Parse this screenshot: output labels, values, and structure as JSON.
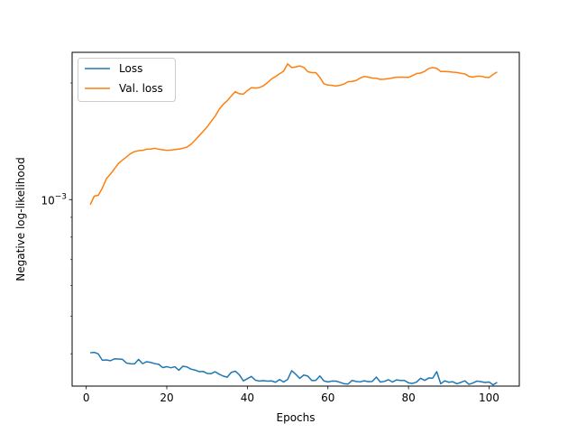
{
  "chart_data": {
    "type": "line",
    "xlabel": "Epochs",
    "ylabel": "Negative log-likelihood",
    "xlim": [
      -3.5,
      107.5
    ],
    "xticks": [
      0,
      20,
      40,
      60,
      80,
      100
    ],
    "xtick_labels": [
      "0",
      "20",
      "40",
      "60",
      "80",
      "100"
    ],
    "yscale": "log",
    "ylim": [
      0.00033,
      0.0024
    ],
    "ytick_label_base": "10",
    "ytick_label_exp": "−3",
    "legend_location": "upper left",
    "grid": false,
    "x": [
      1,
      2,
      3,
      4,
      5,
      6,
      7,
      8,
      9,
      10,
      11,
      12,
      13,
      14,
      15,
      16,
      17,
      18,
      19,
      20,
      21,
      22,
      23,
      24,
      25,
      26,
      27,
      28,
      29,
      30,
      31,
      32,
      33,
      34,
      35,
      36,
      37,
      38,
      39,
      40,
      41,
      42,
      43,
      44,
      45,
      46,
      47,
      48,
      49,
      50,
      51,
      52,
      53,
      54,
      55,
      56,
      57,
      58,
      59,
      60,
      61,
      62,
      63,
      64,
      65,
      66,
      67,
      68,
      69,
      70,
      71,
      72,
      73,
      74,
      75,
      76,
      77,
      78,
      79,
      80,
      81,
      82,
      83,
      84,
      85,
      86,
      87,
      88,
      89,
      90,
      91,
      92,
      93,
      94,
      95,
      96,
      97,
      98,
      99,
      100,
      101,
      102
    ],
    "series": [
      {
        "name": "Loss",
        "color": "#1f77b4",
        "values": [
          0.0004023,
          0.0004033,
          0.0003995,
          0.0003848,
          0.0003856,
          0.0003837,
          0.000388,
          0.0003877,
          0.0003867,
          0.0003785,
          0.0003768,
          0.0003765,
          0.0003867,
          0.0003771,
          0.0003815,
          0.0003799,
          0.0003772,
          0.0003756,
          0.0003683,
          0.0003704,
          0.000368,
          0.0003702,
          0.0003626,
          0.0003714,
          0.0003699,
          0.000365,
          0.000363,
          0.0003596,
          0.0003601,
          0.0003558,
          0.0003553,
          0.0003594,
          0.0003542,
          0.0003503,
          0.0003479,
          0.0003579,
          0.0003606,
          0.000353,
          0.0003404,
          0.0003448,
          0.0003496,
          0.0003417,
          0.00034,
          0.0003407,
          0.0003399,
          0.0003403,
          0.0003376,
          0.0003431,
          0.000338,
          0.0003434,
          0.0003617,
          0.0003541,
          0.0003455,
          0.0003524,
          0.0003503,
          0.000341,
          0.0003414,
          0.0003505,
          0.0003403,
          0.0003383,
          0.00034,
          0.0003399,
          0.0003375,
          0.0003346,
          0.0003341,
          0.0003413,
          0.0003392,
          0.0003384,
          0.0003405,
          0.0003387,
          0.0003391,
          0.0003482,
          0.000338,
          0.0003393,
          0.0003428,
          0.000338,
          0.0003424,
          0.0003412,
          0.0003412,
          0.0003364,
          0.0003352,
          0.000338,
          0.0003457,
          0.0003414,
          0.0003462,
          0.0003459,
          0.0003596,
          0.0003346,
          0.0003405,
          0.0003376,
          0.0003387,
          0.0003346,
          0.0003374,
          0.0003405,
          0.0003335,
          0.0003362,
          0.00034,
          0.0003388,
          0.0003372,
          0.000338,
          0.0003324,
          0.0003374
        ]
      },
      {
        "name": "Val. loss",
        "color": "#ff7f0e",
        "values": [
          0.00097,
          0.001021,
          0.001026,
          0.001071,
          0.001132,
          0.001163,
          0.0012,
          0.00124,
          0.001265,
          0.001289,
          0.001314,
          0.00133,
          0.001338,
          0.00134,
          0.001349,
          0.00135,
          0.001357,
          0.001349,
          0.001345,
          0.00134,
          0.001342,
          0.001347,
          0.00135,
          0.001357,
          0.001366,
          0.001389,
          0.001423,
          0.001461,
          0.001499,
          0.001539,
          0.001591,
          0.001642,
          0.001711,
          0.001761,
          0.0018,
          0.001851,
          0.001899,
          0.001876,
          0.001872,
          0.001911,
          0.001945,
          0.00194,
          0.001946,
          0.001968,
          0.002004,
          0.002049,
          0.002078,
          0.002113,
          0.002146,
          0.002241,
          0.002192,
          0.0022,
          0.002213,
          0.002195,
          0.002139,
          0.002127,
          0.002127,
          0.002067,
          0.00199,
          0.001976,
          0.001972,
          0.001964,
          0.001973,
          0.001988,
          0.002016,
          0.002019,
          0.00203,
          0.00206,
          0.002079,
          0.002071,
          0.00206,
          0.002057,
          0.002043,
          0.002046,
          0.002051,
          0.002061,
          0.00207,
          0.00207,
          0.00207,
          0.002068,
          0.00209,
          0.002116,
          0.002121,
          0.002143,
          0.00218,
          0.002192,
          0.002182,
          0.002141,
          0.002142,
          0.002139,
          0.002133,
          0.002129,
          0.002119,
          0.002111,
          0.002081,
          0.00207,
          0.002082,
          0.002082,
          0.00207,
          0.002066,
          0.002104,
          0.002136
        ]
      }
    ]
  }
}
